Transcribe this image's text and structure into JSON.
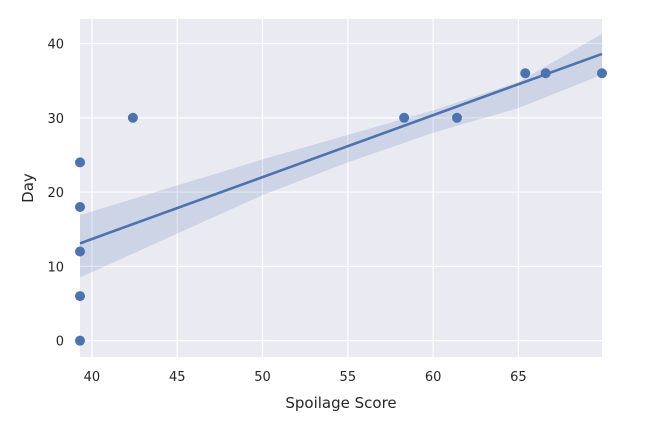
{
  "chart_data": {
    "type": "scatter",
    "xlabel": "Spoilage Score",
    "ylabel": "Day",
    "xlim": [
      39.3,
      69.9
    ],
    "ylim": [
      -2.2,
      43.3
    ],
    "xticks": [
      40,
      45,
      50,
      55,
      60,
      65
    ],
    "yticks": [
      0,
      10,
      20,
      30,
      40
    ],
    "grid": true,
    "points": [
      {
        "x": 39.3,
        "y": 0
      },
      {
        "x": 39.3,
        "y": 6
      },
      {
        "x": 39.3,
        "y": 12
      },
      {
        "x": 39.3,
        "y": 18
      },
      {
        "x": 39.3,
        "y": 24
      },
      {
        "x": 42.4,
        "y": 30
      },
      {
        "x": 58.3,
        "y": 30
      },
      {
        "x": 61.4,
        "y": 30
      },
      {
        "x": 65.4,
        "y": 36
      },
      {
        "x": 66.6,
        "y": 36
      },
      {
        "x": 69.9,
        "y": 36
      }
    ],
    "regression": {
      "line": [
        [
          39.3,
          13.1
        ],
        [
          69.9,
          38.6
        ]
      ],
      "ci_upper": [
        [
          39.3,
          16.9
        ],
        [
          50,
          24.4
        ],
        [
          55,
          27.7
        ],
        [
          60,
          31.0
        ],
        [
          65,
          34.8
        ],
        [
          69.9,
          41.3
        ]
      ],
      "ci_lower": [
        [
          39.3,
          8.5
        ],
        [
          50,
          19.6
        ],
        [
          55,
          24.0
        ],
        [
          60,
          28.0
        ],
        [
          65,
          31.3
        ],
        [
          69.9,
          35.8
        ]
      ]
    },
    "colors": {
      "background": "#eaeaf2",
      "grid": "#ffffff",
      "series": "#4c72b0",
      "ci_band": "#4c72b0"
    }
  }
}
